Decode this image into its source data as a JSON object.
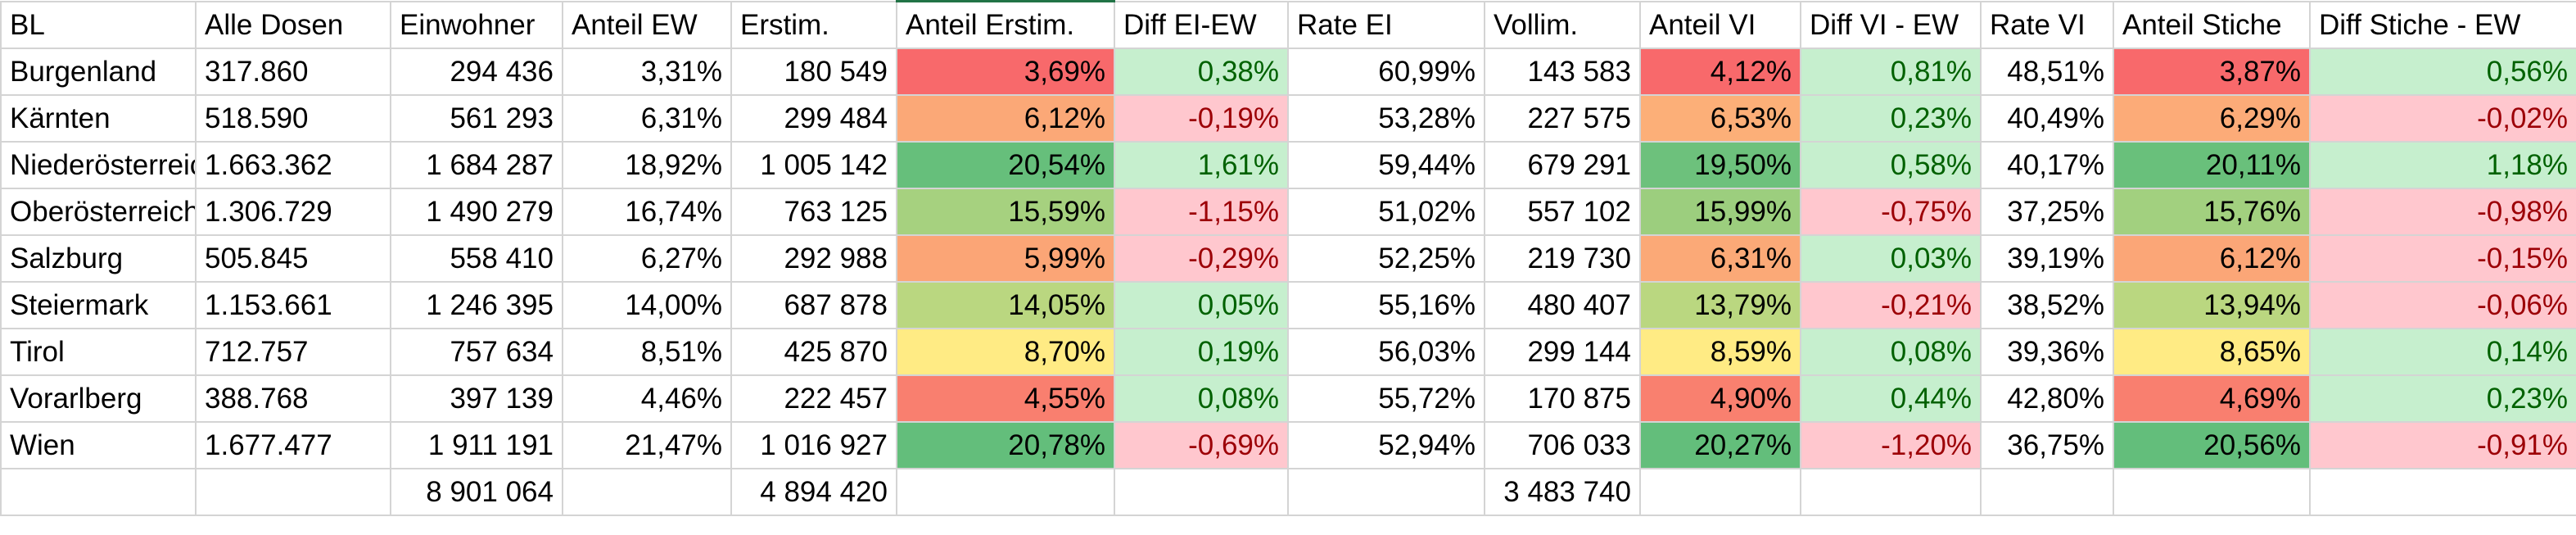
{
  "headers": [
    "BL",
    "Alle Dosen",
    "Einwohner",
    "Anteil EW",
    "Erstim.",
    "Anteil Erstim.",
    "Diff EI-EW",
    "Rate EI",
    "Vollim.",
    "Anteil VI",
    "Diff VI - EW",
    "Rate VI",
    "Anteil Stiche",
    "Diff Stiche - EW"
  ],
  "rows": [
    {
      "bl": "Burgenland",
      "dosen": "317.860",
      "einwohner": "294 436",
      "anteil_ew": "3,31%",
      "erstim": "180 549",
      "anteil_erstim": "3,69%",
      "diff_ei_ew": "0,38%",
      "rate_ei": "60,99%",
      "vollim": "143 583",
      "anteil_vi": "4,12%",
      "diff_vi_ew": "0,81%",
      "rate_vi": "48,51%",
      "anteil_stiche": "3,87%",
      "diff_stiche_ew": "0,56%"
    },
    {
      "bl": "Kärnten",
      "dosen": "518.590",
      "einwohner": "561 293",
      "anteil_ew": "6,31%",
      "erstim": "299 484",
      "anteil_erstim": "6,12%",
      "diff_ei_ew": "-0,19%",
      "rate_ei": "53,28%",
      "vollim": "227 575",
      "anteil_vi": "6,53%",
      "diff_vi_ew": "0,23%",
      "rate_vi": "40,49%",
      "anteil_stiche": "6,29%",
      "diff_stiche_ew": "-0,02%"
    },
    {
      "bl": "Niederösterreich",
      "dosen": "1.663.362",
      "einwohner": "1 684 287",
      "anteil_ew": "18,92%",
      "erstim": "1 005 142",
      "anteil_erstim": "20,54%",
      "diff_ei_ew": "1,61%",
      "rate_ei": "59,44%",
      "vollim": "679 291",
      "anteil_vi": "19,50%",
      "diff_vi_ew": "0,58%",
      "rate_vi": "40,17%",
      "anteil_stiche": "20,11%",
      "diff_stiche_ew": "1,18%"
    },
    {
      "bl": "Oberösterreich",
      "dosen": "1.306.729",
      "einwohner": "1 490 279",
      "anteil_ew": "16,74%",
      "erstim": "763 125",
      "anteil_erstim": "15,59%",
      "diff_ei_ew": "-1,15%",
      "rate_ei": "51,02%",
      "vollim": "557 102",
      "anteil_vi": "15,99%",
      "diff_vi_ew": "-0,75%",
      "rate_vi": "37,25%",
      "anteil_stiche": "15,76%",
      "diff_stiche_ew": "-0,98%"
    },
    {
      "bl": "Salzburg",
      "dosen": "505.845",
      "einwohner": "558 410",
      "anteil_ew": "6,27%",
      "erstim": "292 988",
      "anteil_erstim": "5,99%",
      "diff_ei_ew": "-0,29%",
      "rate_ei": "52,25%",
      "vollim": "219 730",
      "anteil_vi": "6,31%",
      "diff_vi_ew": "0,03%",
      "rate_vi": "39,19%",
      "anteil_stiche": "6,12%",
      "diff_stiche_ew": "-0,15%"
    },
    {
      "bl": "Steiermark",
      "dosen": "1.153.661",
      "einwohner": "1 246 395",
      "anteil_ew": "14,00%",
      "erstim": "687 878",
      "anteil_erstim": "14,05%",
      "diff_ei_ew": "0,05%",
      "rate_ei": "55,16%",
      "vollim": "480 407",
      "anteil_vi": "13,79%",
      "diff_vi_ew": "-0,21%",
      "rate_vi": "38,52%",
      "anteil_stiche": "13,94%",
      "diff_stiche_ew": "-0,06%"
    },
    {
      "bl": "Tirol",
      "dosen": "712.757",
      "einwohner": "757 634",
      "anteil_ew": "8,51%",
      "erstim": "425 870",
      "anteil_erstim": "8,70%",
      "diff_ei_ew": "0,19%",
      "rate_ei": "56,03%",
      "vollim": "299 144",
      "anteil_vi": "8,59%",
      "diff_vi_ew": "0,08%",
      "rate_vi": "39,36%",
      "anteil_stiche": "8,65%",
      "diff_stiche_ew": "0,14%"
    },
    {
      "bl": "Vorarlberg",
      "dosen": "388.768",
      "einwohner": "397 139",
      "anteil_ew": "4,46%",
      "erstim": "222 457",
      "anteil_erstim": "4,55%",
      "diff_ei_ew": "0,08%",
      "rate_ei": "55,72%",
      "vollim": "170 875",
      "anteil_vi": "4,90%",
      "diff_vi_ew": "0,44%",
      "rate_vi": "42,80%",
      "anteil_stiche": "4,69%",
      "diff_stiche_ew": "0,23%"
    },
    {
      "bl": "Wien",
      "dosen": "1.677.477",
      "einwohner": "1 911 191",
      "anteil_ew": "21,47%",
      "erstim": "1 016 927",
      "anteil_erstim": "20,78%",
      "diff_ei_ew": "-0,69%",
      "rate_ei": "52,94%",
      "vollim": "706 033",
      "anteil_vi": "20,27%",
      "diff_vi_ew": "-1,20%",
      "rate_vi": "36,75%",
      "anteil_stiche": "20,56%",
      "diff_stiche_ew": "-0,91%"
    }
  ],
  "totals": {
    "einwohner": "8 901 064",
    "erstim": "4 894 420",
    "vollim": "3 483 740"
  },
  "colors": {
    "grid_line": "#d4d4d4",
    "positive_fill": "#c6efce",
    "positive_text": "#006100",
    "negative_fill": "#ffc7ce",
    "negative_text": "#9c0006",
    "scale_low": "#f8696b",
    "scale_mid": "#ffeb84",
    "scale_high": "#63be7b",
    "selection_accent": "#217346"
  },
  "color_scale_columns": [
    "anteil_erstim",
    "anteil_vi",
    "anteil_stiche"
  ],
  "diff_columns": [
    "diff_ei_ew",
    "diff_vi_ew",
    "diff_stiche_ew"
  ]
}
